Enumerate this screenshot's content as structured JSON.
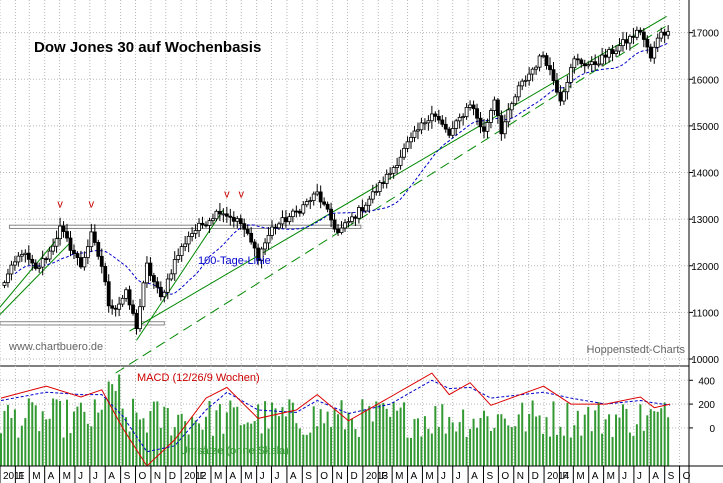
{
  "chart_data": [
    {
      "type": "candlestick",
      "title": "Dow Jones 30 auf Wochenbasis",
      "yticks": [
        10000,
        11000,
        12000,
        13000,
        14000,
        15000,
        16000,
        17000
      ],
      "ylim": [
        9850,
        17700
      ],
      "grid": true,
      "price_path": [
        [
          "2011-01-03",
          11550
        ],
        [
          "2011-02-14",
          12300
        ],
        [
          "2011-03-14",
          11900
        ],
        [
          "2011-04-11",
          12300
        ],
        [
          "2011-05-02",
          12800
        ],
        [
          "2011-06-13",
          12000
        ],
        [
          "2011-07-04",
          12650
        ],
        [
          "2011-07-25",
          12000
        ],
        [
          "2011-08-08",
          11200
        ],
        [
          "2011-08-22",
          11100
        ],
        [
          "2011-09-12",
          11400
        ],
        [
          "2011-10-03",
          10700
        ],
        [
          "2011-10-24",
          12000
        ],
        [
          "2011-11-21",
          11300
        ],
        [
          "2011-12-19",
          12100
        ],
        [
          "2012-01-16",
          12650
        ],
        [
          "2012-02-20",
          12950
        ],
        [
          "2012-03-19",
          13200
        ],
        [
          "2012-05-01",
          12900
        ],
        [
          "2012-06-04",
          12200
        ],
        [
          "2012-07-02",
          12800
        ],
        [
          "2012-08-20",
          13150
        ],
        [
          "2012-10-01",
          13550
        ],
        [
          "2012-11-12",
          12700
        ],
        [
          "2012-12-31",
          13250
        ],
        [
          "2013-02-25",
          14000
        ],
        [
          "2013-04-01",
          14600
        ],
        [
          "2013-05-20",
          15300
        ],
        [
          "2013-06-24",
          14800
        ],
        [
          "2013-08-05",
          15500
        ],
        [
          "2013-09-02",
          14850
        ],
        [
          "2013-09-23",
          15600
        ],
        [
          "2013-10-07",
          14900
        ],
        [
          "2013-11-11",
          15800
        ],
        [
          "2013-12-31",
          16550
        ],
        [
          "2014-02-03",
          15600
        ],
        [
          "2014-03-03",
          16400
        ],
        [
          "2014-04-07",
          16300
        ],
        [
          "2014-05-26",
          16650
        ],
        [
          "2014-07-14",
          17050
        ],
        [
          "2014-08-04",
          16450
        ],
        [
          "2014-08-25",
          17050
        ],
        [
          "2014-09-12",
          16950
        ]
      ],
      "annotations": {
        "line_label": "100-Tage-Linie",
        "source": "www.chartbuero.de",
        "provider": "Hoppenstedt-Charts",
        "peak_markers": "v"
      },
      "colors": {
        "candles": "#000000",
        "moving_average": "#0000cc",
        "trend_lines": "#008800",
        "peak_markers": "#cc0000",
        "ma_label": "#0000cc"
      }
    },
    {
      "type": "line",
      "title": "MACD (12/26/9 Wochen)",
      "yticks": [
        0,
        200,
        400
      ],
      "ylim": [
        -320,
        520
      ],
      "macd": [
        [
          "2011-01-03",
          250
        ],
        [
          "2011-04-04",
          350
        ],
        [
          "2011-06-13",
          260
        ],
        [
          "2011-07-25",
          320
        ],
        [
          "2011-09-05",
          0
        ],
        [
          "2011-10-24",
          -320
        ],
        [
          "2011-12-19",
          -100
        ],
        [
          "2012-02-20",
          250
        ],
        [
          "2012-04-02",
          340
        ],
        [
          "2012-06-04",
          80
        ],
        [
          "2012-08-20",
          150
        ],
        [
          "2012-10-01",
          280
        ],
        [
          "2012-12-03",
          60
        ],
        [
          "2013-02-25",
          260
        ],
        [
          "2013-05-20",
          460
        ],
        [
          "2013-06-24",
          280
        ],
        [
          "2013-08-05",
          380
        ],
        [
          "2013-09-16",
          190
        ],
        [
          "2013-12-31",
          350
        ],
        [
          "2014-02-24",
          200
        ],
        [
          "2014-05-05",
          200
        ],
        [
          "2014-07-14",
          260
        ],
        [
          "2014-08-11",
          170
        ],
        [
          "2014-09-12",
          200
        ]
      ],
      "signal": [
        [
          "2011-01-03",
          230
        ],
        [
          "2011-04-04",
          300
        ],
        [
          "2011-06-13",
          280
        ],
        [
          "2011-07-25",
          280
        ],
        [
          "2011-09-05",
          100
        ],
        [
          "2011-10-24",
          -200
        ],
        [
          "2011-12-19",
          -150
        ],
        [
          "2012-02-20",
          150
        ],
        [
          "2012-04-02",
          300
        ],
        [
          "2012-06-04",
          150
        ],
        [
          "2012-08-20",
          130
        ],
        [
          "2012-10-01",
          230
        ],
        [
          "2012-12-03",
          120
        ],
        [
          "2013-02-25",
          200
        ],
        [
          "2013-05-20",
          400
        ],
        [
          "2013-06-24",
          330
        ],
        [
          "2013-08-05",
          340
        ],
        [
          "2013-09-16",
          250
        ],
        [
          "2013-12-31",
          300
        ],
        [
          "2014-02-24",
          250
        ],
        [
          "2014-05-05",
          200
        ],
        [
          "2014-07-14",
          230
        ],
        [
          "2014-08-11",
          210
        ],
        [
          "2014-09-12",
          190
        ]
      ],
      "volume_label": "Umsätze (ohne Skala)",
      "colors": {
        "macd": "#dd0000",
        "signal": "#0000cc",
        "volume": "#339933",
        "label": "#cc0000",
        "volume_label": "#339933"
      }
    }
  ],
  "x_axis": {
    "labels": [
      [
        "2011-01-01",
        "2011"
      ],
      [
        "2011-02-01",
        "F"
      ],
      [
        "2011-03-01",
        "M"
      ],
      [
        "2011-04-01",
        "A"
      ],
      [
        "2011-05-01",
        "M"
      ],
      [
        "2011-06-01",
        "J"
      ],
      [
        "2011-07-01",
        "J"
      ],
      [
        "2011-08-01",
        "A"
      ],
      [
        "2011-09-01",
        "S"
      ],
      [
        "2011-10-01",
        "O"
      ],
      [
        "2011-11-01",
        "N"
      ],
      [
        "2011-12-01",
        "D"
      ],
      [
        "2012-01-01",
        "2012"
      ],
      [
        "2012-02-01",
        "F"
      ],
      [
        "2012-03-01",
        "M"
      ],
      [
        "2012-04-01",
        "A"
      ],
      [
        "2012-05-01",
        "M"
      ],
      [
        "2012-06-01",
        "J"
      ],
      [
        "2012-07-01",
        "J"
      ],
      [
        "2012-08-01",
        "A"
      ],
      [
        "2012-09-01",
        "S"
      ],
      [
        "2012-10-01",
        "O"
      ],
      [
        "2012-11-01",
        "N"
      ],
      [
        "2012-12-01",
        "D"
      ],
      [
        "2013-01-01",
        "2013"
      ],
      [
        "2013-02-01",
        "F"
      ],
      [
        "2013-03-01",
        "M"
      ],
      [
        "2013-04-01",
        "A"
      ],
      [
        "2013-05-01",
        "M"
      ],
      [
        "2013-06-01",
        "J"
      ],
      [
        "2013-07-01",
        "J"
      ],
      [
        "2013-08-01",
        "A"
      ],
      [
        "2013-09-01",
        "S"
      ],
      [
        "2013-10-01",
        "O"
      ],
      [
        "2013-11-01",
        "N"
      ],
      [
        "2013-12-01",
        "D"
      ],
      [
        "2014-01-01",
        "2014"
      ],
      [
        "2014-02-01",
        "F"
      ],
      [
        "2014-03-01",
        "M"
      ],
      [
        "2014-04-01",
        "A"
      ],
      [
        "2014-05-01",
        "M"
      ],
      [
        "2014-06-01",
        "J"
      ],
      [
        "2014-07-01",
        "J"
      ],
      [
        "2014-08-01",
        "A"
      ],
      [
        "2014-09-01",
        "S"
      ],
      [
        "2014-10-01",
        "O"
      ]
    ],
    "start": "2011-01-01",
    "end": "2014-10-20"
  }
}
